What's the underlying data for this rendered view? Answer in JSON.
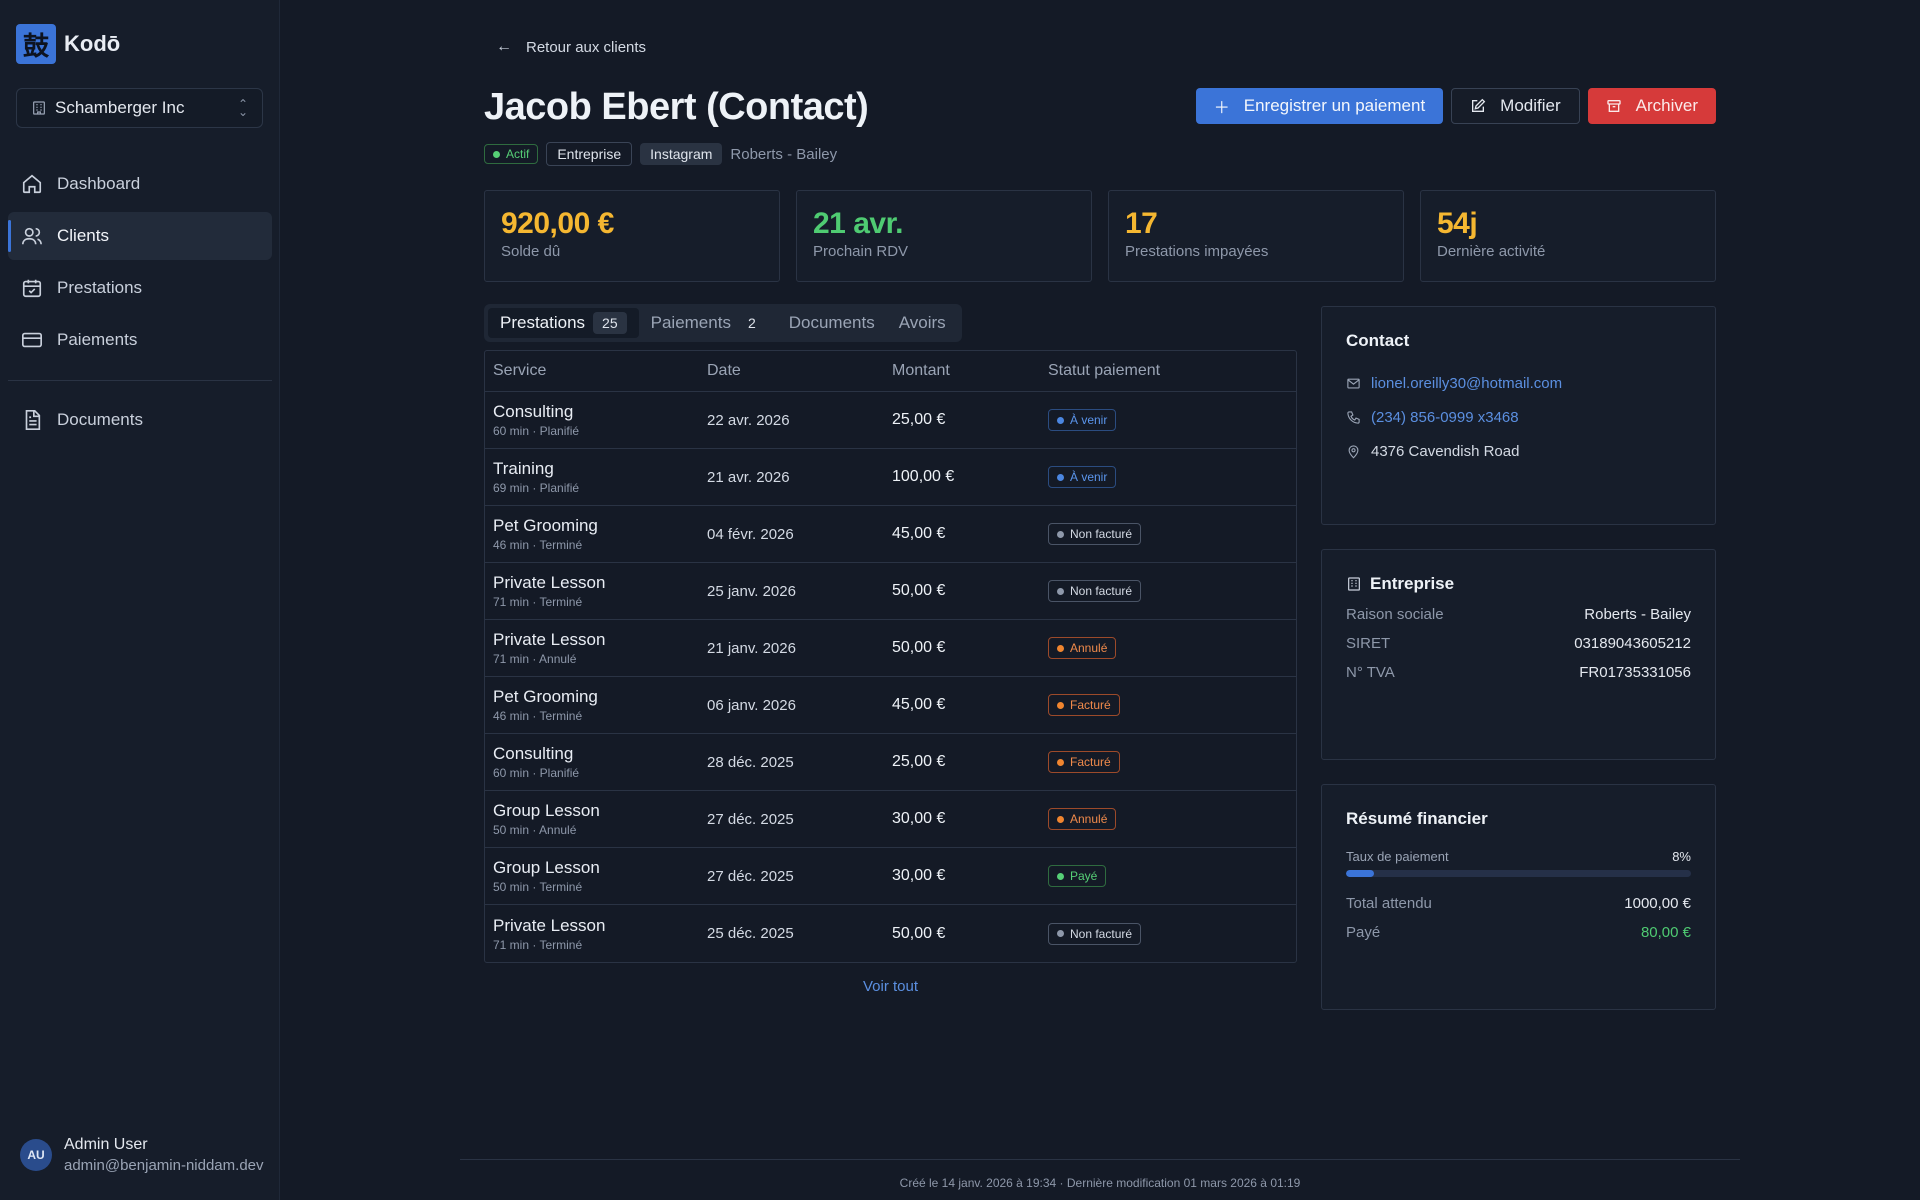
{
  "app": {
    "logo_glyph": "鼓",
    "name": "Kodō"
  },
  "org_select": {
    "value": "Schamberger Inc"
  },
  "nav": [
    {
      "label": "Dashboard",
      "icon": "home-icon",
      "active": false
    },
    {
      "label": "Clients",
      "icon": "users-icon",
      "active": true
    },
    {
      "label": "Prestations",
      "icon": "calendar-icon",
      "active": false
    },
    {
      "label": "Paiements",
      "icon": "credit-card-icon",
      "active": false
    }
  ],
  "nav_secondary": [
    {
      "label": "Documents",
      "icon": "document-icon"
    }
  ],
  "user": {
    "initials": "AU",
    "name": "Admin User",
    "email": "admin@benjamin-niddam.dev"
  },
  "back_link": "Retour aux clients",
  "client": {
    "title": "Jacob Ebert (Contact)",
    "status": "Actif",
    "type": "Entreprise",
    "source": "Instagram",
    "company": "Roberts - Bailey"
  },
  "actions": {
    "record_payment": "Enregistrer un paiement",
    "edit": "Modifier",
    "archive": "Archiver"
  },
  "stats": [
    {
      "value": "920,00 €",
      "label": "Solde dû",
      "color": "#f5b731"
    },
    {
      "value": "21 avr.",
      "label": "Prochain RDV",
      "color": "#4fcb72"
    },
    {
      "value": "17",
      "label": "Prestations impayées",
      "color": "#f5b731"
    },
    {
      "value": "54j",
      "label": "Dernière activité",
      "color": "#f5b731"
    }
  ],
  "tabs": [
    {
      "label": "Prestations",
      "count": "25",
      "active": true
    },
    {
      "label": "Paiements",
      "count": "2",
      "active": false
    },
    {
      "label": "Documents",
      "count": null,
      "active": false
    },
    {
      "label": "Avoirs",
      "count": null,
      "active": false
    }
  ],
  "table": {
    "headers": {
      "service": "Service",
      "date": "Date",
      "amount": "Montant",
      "status": "Statut paiement"
    },
    "rows": [
      {
        "service": "Consulting",
        "sub": "60 min · Planifié",
        "date": "22 avr. 2026",
        "amount": "25,00 €",
        "status": "À venir",
        "kind": "upcoming"
      },
      {
        "service": "Training",
        "sub": "69 min · Planifié",
        "date": "21 avr. 2026",
        "amount": "100,00 €",
        "status": "À venir",
        "kind": "upcoming"
      },
      {
        "service": "Pet Grooming",
        "sub": "46 min · Terminé",
        "date": "04 févr. 2026",
        "amount": "45,00 €",
        "status": "Non facturé",
        "kind": "unbilled"
      },
      {
        "service": "Private Lesson",
        "sub": "71 min · Terminé",
        "date": "25 janv. 2026",
        "amount": "50,00 €",
        "status": "Non facturé",
        "kind": "unbilled"
      },
      {
        "service": "Private Lesson",
        "sub": "71 min · Annulé",
        "date": "21 janv. 2026",
        "amount": "50,00 €",
        "status": "Annulé",
        "kind": "cancelled"
      },
      {
        "service": "Pet Grooming",
        "sub": "46 min · Terminé",
        "date": "06 janv. 2026",
        "amount": "45,00 €",
        "status": "Facturé",
        "kind": "billed"
      },
      {
        "service": "Consulting",
        "sub": "60 min · Planifié",
        "date": "28 déc. 2025",
        "amount": "25,00 €",
        "status": "Facturé",
        "kind": "billed"
      },
      {
        "service": "Group Lesson",
        "sub": "50 min · Annulé",
        "date": "27 déc. 2025",
        "amount": "30,00 €",
        "status": "Annulé",
        "kind": "cancelled"
      },
      {
        "service": "Group Lesson",
        "sub": "50 min · Terminé",
        "date": "27 déc. 2025",
        "amount": "30,00 €",
        "status": "Payé",
        "kind": "paid"
      },
      {
        "service": "Private Lesson",
        "sub": "71 min · Terminé",
        "date": "25 déc. 2025",
        "amount": "50,00 €",
        "status": "Non facturé",
        "kind": "unbilled"
      }
    ],
    "see_all": "Voir tout"
  },
  "contact": {
    "title": "Contact",
    "email": "lionel.oreilly30@hotmail.com",
    "phone": "(234) 856-0999 x3468",
    "address": "4376 Cavendish Road"
  },
  "company": {
    "title": "Entreprise",
    "fields": [
      {
        "label": "Raison sociale",
        "value": "Roberts - Bailey"
      },
      {
        "label": "SIRET",
        "value": "03189043605212"
      },
      {
        "label": "N° TVA",
        "value": "FR01735331056"
      }
    ]
  },
  "finance": {
    "title": "Résumé financier",
    "rate_label": "Taux de paiement",
    "rate_text": "8%",
    "rate_value": 0.08,
    "total_label": "Total attendu",
    "total_value": "1000,00 €",
    "paid_label": "Payé",
    "paid_value": "80,00 €",
    "paid_color": "#4fcb72"
  },
  "footer": "Créé le 14 janv. 2026 à 19:34 · Dernière modification 01 mars 2026 à 01:19"
}
